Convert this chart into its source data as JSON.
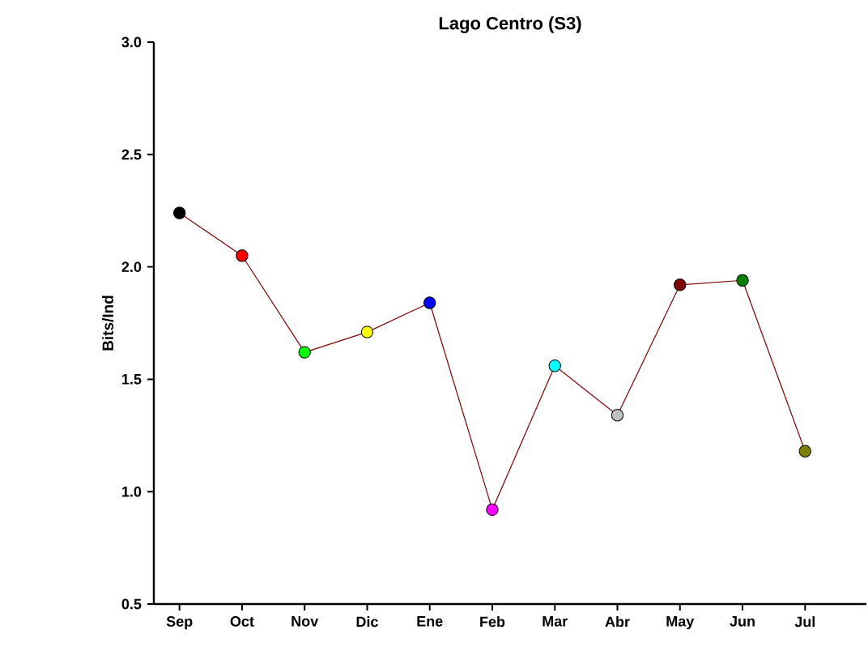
{
  "chart_data": {
    "type": "line",
    "title": "Lago Centro (S3)",
    "ylabel": "Bits/Ind",
    "categories": [
      "Sep",
      "Oct",
      "Nov",
      "Dic",
      "Ene",
      "Feb",
      "Mar",
      "Abr",
      "May",
      "Jun",
      "Jul"
    ],
    "series": [
      {
        "color": "#800000",
        "colors": [
          "#000000",
          "#ff0000",
          "#00ff00",
          "#ffff00",
          "#0000ff",
          "#ff00ff",
          "#00ffff",
          "#c0c0c0",
          "#800000",
          "#008000",
          "#808000"
        ],
        "values": [
          2.24,
          2.05,
          1.62,
          1.71,
          1.84,
          0.92,
          1.56,
          1.34,
          1.92,
          1.94,
          1.18
        ]
      }
    ],
    "ylim": [
      0.5,
      3.0
    ],
    "yticks": [
      {
        "value": 0.5,
        "label": "0.5"
      },
      {
        "value": 1.0,
        "label": "1.0"
      },
      {
        "value": 1.5,
        "label": "1.5"
      },
      {
        "value": 2.0,
        "label": "2.0"
      },
      {
        "value": 2.5,
        "label": "2.5"
      },
      {
        "value": 3.0,
        "label": "3.0"
      }
    ],
    "marker": "circle",
    "line_style": "solid"
  }
}
